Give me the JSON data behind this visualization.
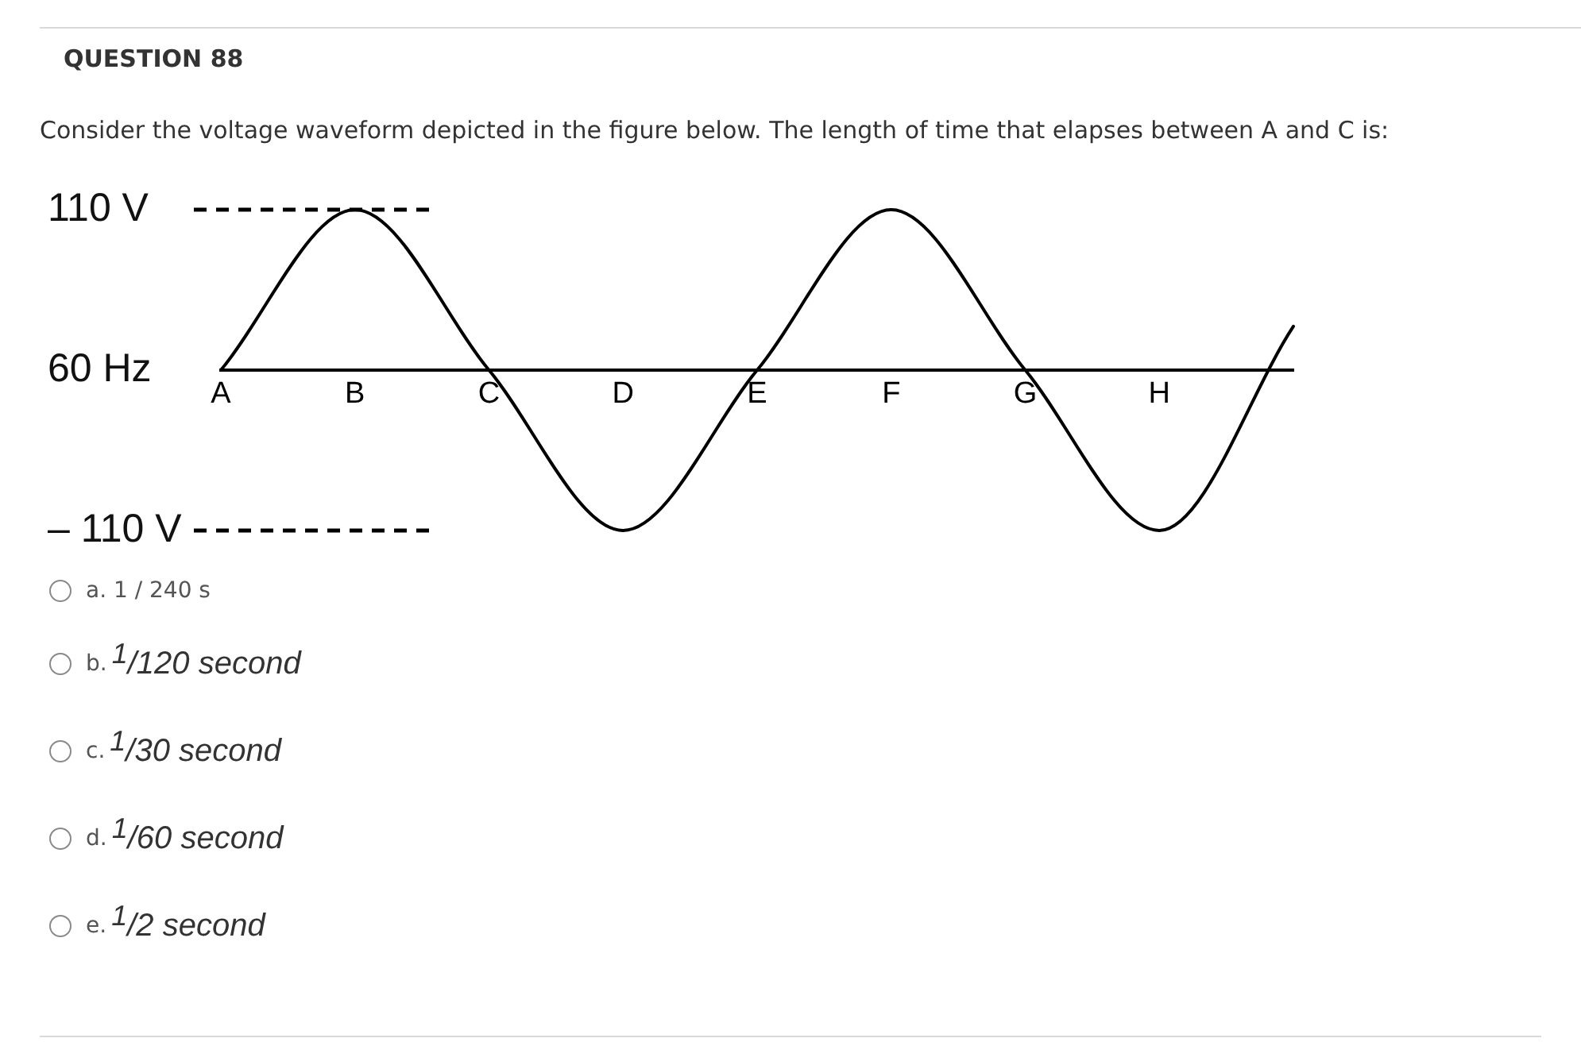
{
  "chart_data": {
    "type": "line",
    "title": "QUESTION 88",
    "subtitle": "Consider the voltage waveform depicted in the figure below. The length of time that elapses between A and C is:",
    "xlabel": "60 Hz",
    "categories": [
      "A",
      "B",
      "C",
      "D",
      "E",
      "F",
      "G",
      "H",
      null
    ],
    "series": [
      {
        "color": "#000000",
        "values": [
          0,
          110,
          0,
          -110,
          0,
          110,
          0,
          -110,
          30
        ]
      }
    ],
    "ylim": [
      -110,
      110
    ],
    "yticks": [
      {
        "value": 110,
        "label": "110 V"
      },
      {
        "value": -110,
        "label": "– 110 V"
      }
    ],
    "ref_lines": [
      {
        "axis": "y",
        "value": 110,
        "color": "#000000",
        "line_style": "dashed"
      },
      {
        "axis": "y",
        "value": -110,
        "color": "#000000",
        "line_style": "dashed"
      }
    ],
    "annotations": [
      "a. 1 / 240 s",
      "b. $^{1}$/120 second",
      "c. $^{1}$/30 second",
      "d. $^{1}$/60 second",
      "e. $^{1}$/2 second"
    ]
  }
}
